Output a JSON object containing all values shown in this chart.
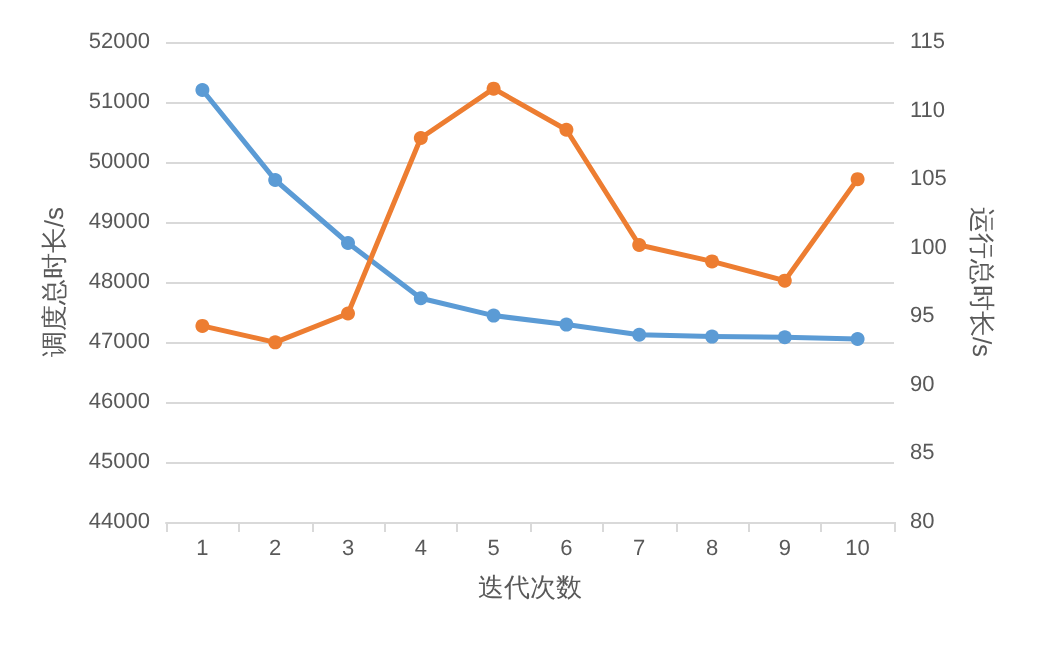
{
  "chart_data": {
    "type": "line",
    "xlabel": "迭代次数",
    "ylabel": "调度总时长/s",
    "y2label": "运行总时长/s",
    "categories": [
      "1",
      "2",
      "3",
      "4",
      "5",
      "6",
      "7",
      "8",
      "9",
      "10"
    ],
    "series": [
      {
        "color": "#5b9bd5",
        "values": [
          51200,
          49700,
          48650,
          47730,
          47440,
          47290,
          47120,
          47090,
          47080,
          47050
        ]
      },
      {
        "color": "#ed7d31",
        "axis": "y2",
        "values": [
          94.3,
          93.1,
          95.2,
          108,
          111.6,
          108.6,
          100.2,
          99,
          97.6,
          105
        ]
      }
    ],
    "ylim": [
      44000,
      52000
    ],
    "yticks": [
      44000,
      45000,
      46000,
      47000,
      48000,
      49000,
      50000,
      51000,
      52000
    ],
    "y2lim": [
      80,
      115
    ],
    "y2ticks": [
      80,
      85,
      90,
      95,
      100,
      105,
      110,
      115
    ],
    "grid": "y",
    "marker": "circle",
    "line_style": "solid"
  }
}
